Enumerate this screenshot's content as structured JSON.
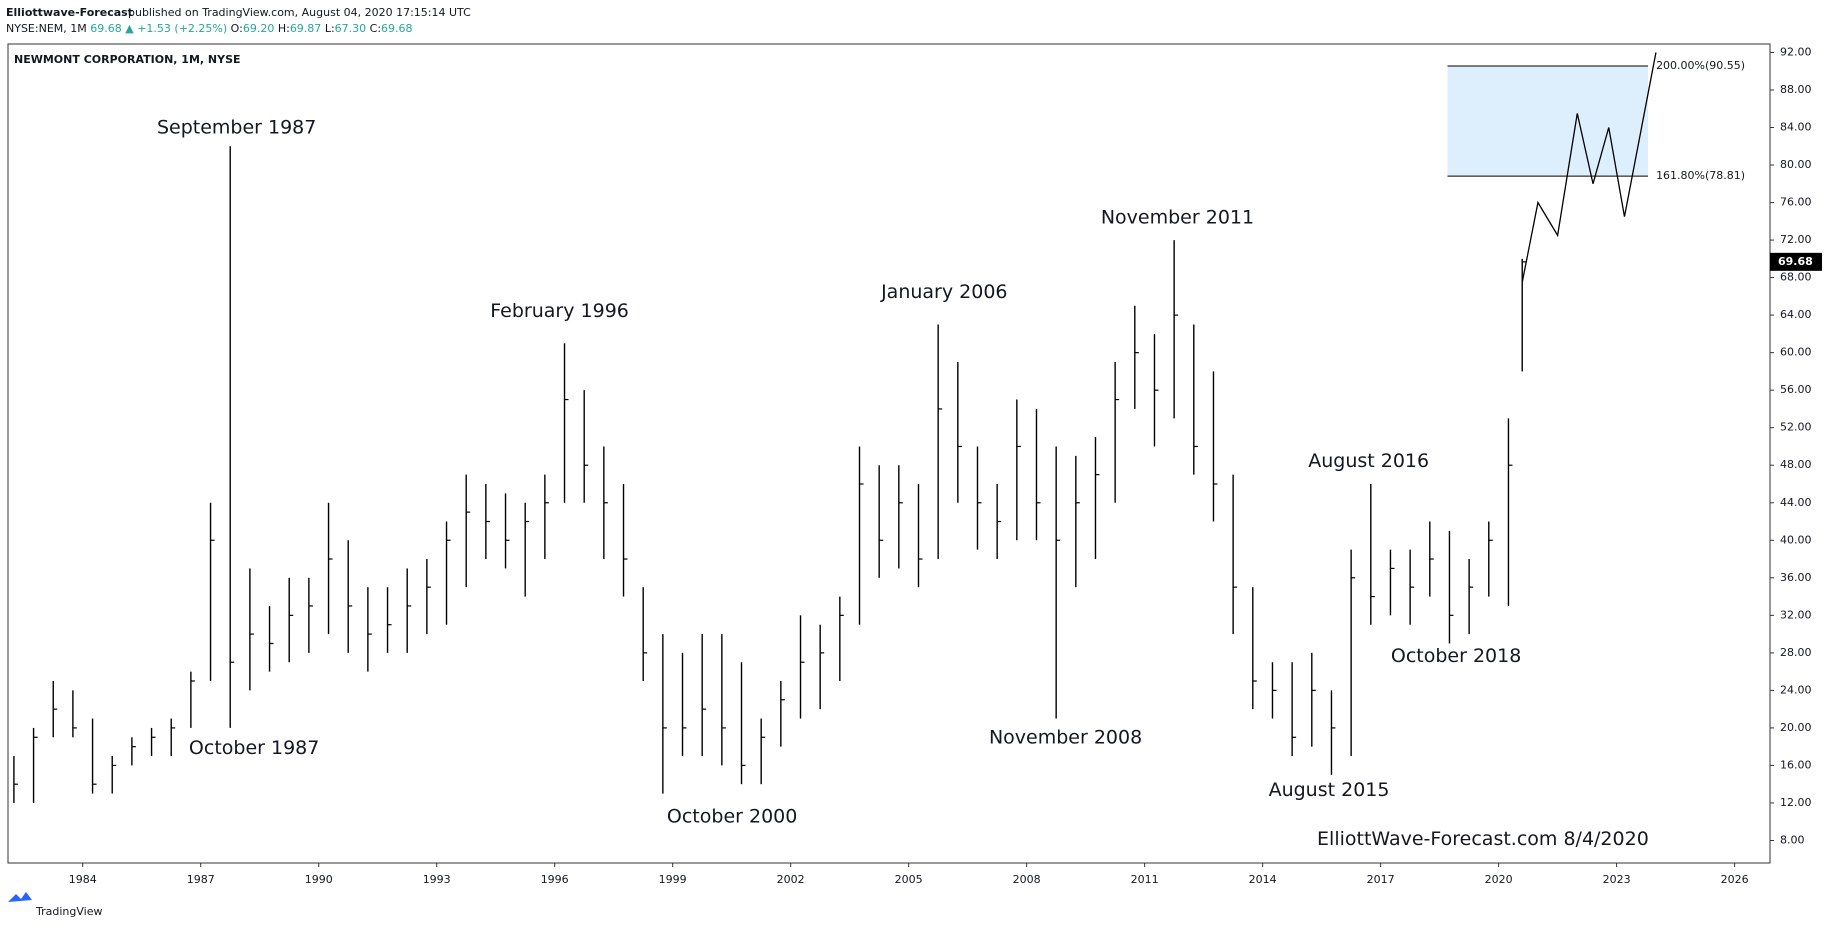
{
  "header": {
    "author": "Elliottwave-Forecast",
    "published": "published on TradingView.com, August 04, 2020 17:15:14 UTC",
    "symbol": "NYSE:NEM, 1M",
    "price": "69.68",
    "change": "▲ +1.53 (+2.25%)",
    "ohlc": [
      {
        "label": "O:",
        "value": "69.20"
      },
      {
        "label": "H:",
        "value": "69.87"
      },
      {
        "label": "L:",
        "value": "67.30"
      },
      {
        "label": "C:",
        "value": "69.68"
      }
    ]
  },
  "footer": {
    "brand": "TradingView"
  },
  "chart_data": {
    "type": "ohlc",
    "title": "NEWMONT CORPORATION, 1M, NYSE",
    "color": "#000000",
    "x": [
      1982.25,
      1982.75,
      1983.25,
      1983.75,
      1984.25,
      1984.75,
      1985.25,
      1985.75,
      1986.25,
      1986.75,
      1987.25,
      1987.75,
      1988.25,
      1988.75,
      1989.25,
      1989.75,
      1990.25,
      1990.75,
      1991.25,
      1991.75,
      1992.25,
      1992.75,
      1993.25,
      1993.75,
      1994.25,
      1994.75,
      1995.25,
      1995.75,
      1996.25,
      1996.75,
      1997.25,
      1997.75,
      1998.25,
      1998.75,
      1999.25,
      1999.75,
      2000.25,
      2000.75,
      2001.25,
      2001.75,
      2002.25,
      2002.75,
      2003.25,
      2003.75,
      2004.25,
      2004.75,
      2005.25,
      2005.75,
      2006.25,
      2006.75,
      2007.25,
      2007.75,
      2008.25,
      2008.75,
      2009.25,
      2009.75,
      2010.25,
      2010.75,
      2011.25,
      2011.75,
      2012.25,
      2012.75,
      2013.25,
      2013.75,
      2014.25,
      2014.75,
      2015.25,
      2015.75,
      2016.25,
      2016.75,
      2017.25,
      2017.75,
      2018.25,
      2018.75,
      2019.25,
      2019.75,
      2020.25,
      2020.6
    ],
    "high": [
      17,
      20,
      25,
      24,
      21,
      17,
      19,
      20,
      21,
      26,
      44,
      82,
      37,
      33,
      36,
      36,
      44,
      40,
      35,
      35,
      37,
      38,
      42,
      47,
      46,
      45,
      44,
      47,
      61,
      56,
      50,
      46,
      35,
      30,
      28,
      30,
      30,
      27,
      21,
      25,
      32,
      31,
      34,
      50,
      48,
      48,
      46,
      63,
      59,
      50,
      46,
      55,
      54,
      50,
      49,
      51,
      59,
      65,
      62,
      72,
      63,
      58,
      47,
      35,
      27,
      27,
      28,
      24,
      39,
      46,
      39,
      39,
      42,
      41,
      38,
      42,
      53,
      70
    ],
    "low": [
      12,
      12,
      19,
      19,
      13,
      13,
      16,
      17,
      17,
      20,
      25,
      20,
      24,
      26,
      27,
      28,
      30,
      28,
      26,
      28,
      28,
      30,
      31,
      35,
      38,
      37,
      34,
      38,
      44,
      44,
      38,
      34,
      25,
      13,
      17,
      17,
      16,
      14,
      14,
      18,
      21,
      22,
      25,
      31,
      36,
      37,
      35,
      38,
      44,
      39,
      38,
      40,
      40,
      21,
      35,
      38,
      44,
      54,
      50,
      53,
      47,
      42,
      30,
      22,
      21,
      17,
      18,
      15,
      17,
      31,
      32,
      31,
      34,
      29,
      30,
      34,
      33,
      58
    ],
    "close": [
      14,
      19,
      22,
      20,
      14,
      16,
      18,
      19,
      20,
      25,
      40,
      27,
      30,
      29,
      32,
      33,
      38,
      33,
      30,
      31,
      33,
      35,
      40,
      43,
      42,
      40,
      42,
      44,
      55,
      48,
      44,
      38,
      28,
      20,
      20,
      22,
      20,
      16,
      19,
      23,
      27,
      28,
      32,
      46,
      40,
      44,
      38,
      54,
      50,
      44,
      42,
      50,
      44,
      40,
      44,
      47,
      55,
      60,
      56,
      64,
      50,
      46,
      35,
      25,
      24,
      19,
      24,
      20,
      36,
      34,
      37,
      35,
      38,
      32,
      35,
      40,
      48,
      69.68
    ],
    "last_price": 69.68,
    "last_price_label": "69.68",
    "projection": {
      "x": [
        2020.6,
        2021.0,
        2021.5,
        2022.0,
        2022.4,
        2022.8,
        2023.2,
        2024.0
      ],
      "values": [
        67.5,
        76,
        72.5,
        85.5,
        78,
        84,
        74.5,
        92
      ]
    },
    "levels": [
      {
        "value": 90.55,
        "label": "200.00%(90.55)"
      },
      {
        "value": 78.81,
        "label": "161.80%(78.81)"
      }
    ],
    "annotations": [
      "September 1987",
      "October 1987",
      "February 1996",
      "October 2000",
      "January 2006",
      "November 2008",
      "November 2011",
      "August 2015",
      "August 2016",
      "October 2018"
    ],
    "watermark": "ElliottWave-Forecast.com 8/4/2020",
    "xlim": [
      1982.1,
      2026.9
    ],
    "xticks": [
      1984,
      1987,
      1990,
      1993,
      1996,
      1999,
      2002,
      2005,
      2008,
      2011,
      2014,
      2017,
      2020,
      2023,
      2026
    ],
    "ylim": [
      5.6,
      92.9
    ],
    "yticks": [
      {
        "value": 8,
        "label": "8.00"
      },
      {
        "value": 12,
        "label": "12.00"
      },
      {
        "value": 16,
        "label": "16.00"
      },
      {
        "value": 20,
        "label": "20.00"
      },
      {
        "value": 24,
        "label": "24.00"
      },
      {
        "value": 28,
        "label": "28.00"
      },
      {
        "value": 32,
        "label": "32.00"
      },
      {
        "value": 36,
        "label": "36.00"
      },
      {
        "value": 40,
        "label": "40.00"
      },
      {
        "value": 44,
        "label": "44.00"
      },
      {
        "value": 48,
        "label": "48.00"
      },
      {
        "value": 52,
        "label": "52.00"
      },
      {
        "value": 56,
        "label": "56.00"
      },
      {
        "value": 60,
        "label": "60.00"
      },
      {
        "value": 64,
        "label": "64.00"
      },
      {
        "value": 68,
        "label": "68.00"
      },
      {
        "value": 72,
        "label": "72.00"
      },
      {
        "value": 76,
        "label": "76.00"
      },
      {
        "value": 80,
        "label": "80.00"
      },
      {
        "value": 84,
        "label": "84.00"
      },
      {
        "value": 88,
        "label": "88.00"
      },
      {
        "value": 92,
        "label": "92.00"
      }
    ],
    "grid": false
  }
}
